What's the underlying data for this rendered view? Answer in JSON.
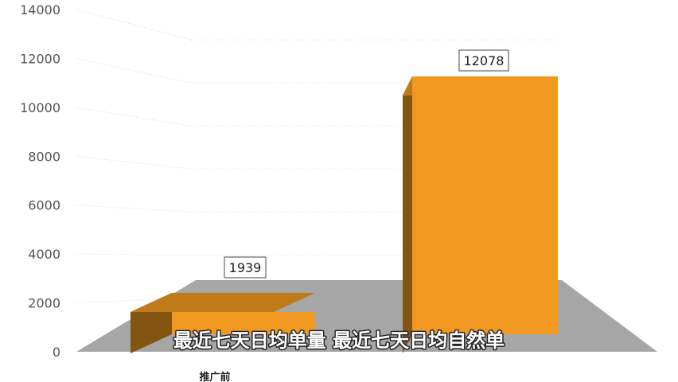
{
  "chart_data": {
    "type": "bar",
    "categories": [
      "推广前",
      ""
    ],
    "values": [
      1939,
      12078
    ],
    "data_labels": [
      "1939",
      "12078"
    ],
    "ylim": [
      0,
      14000
    ],
    "y_ticks": [
      "0",
      "2000",
      "4000",
      "6000",
      "8000",
      "10000",
      "12000",
      "14000"
    ],
    "grid": true,
    "bar_color": "#F0981F",
    "floor_color": "#A6A6A6"
  },
  "subtitle": "最近七天日均单量 最近七天日均自然单"
}
